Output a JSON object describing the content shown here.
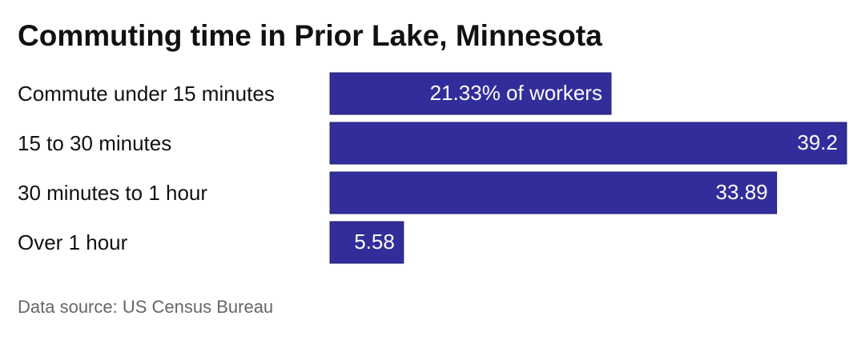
{
  "chart_data": {
    "type": "bar",
    "orientation": "horizontal",
    "title": "Commuting time in Prior Lake, Minnesota",
    "categories": [
      "Commute under 15 minutes",
      "15 to 30 minutes",
      "30 minutes to 1 hour",
      "Over 1 hour"
    ],
    "values": [
      21.33,
      39.2,
      33.89,
      5.58
    ],
    "value_labels": [
      "21.33% of workers",
      "39.2",
      "33.89",
      "5.58"
    ],
    "color": "#312e9c",
    "source": "Data source: US Census Bureau"
  }
}
